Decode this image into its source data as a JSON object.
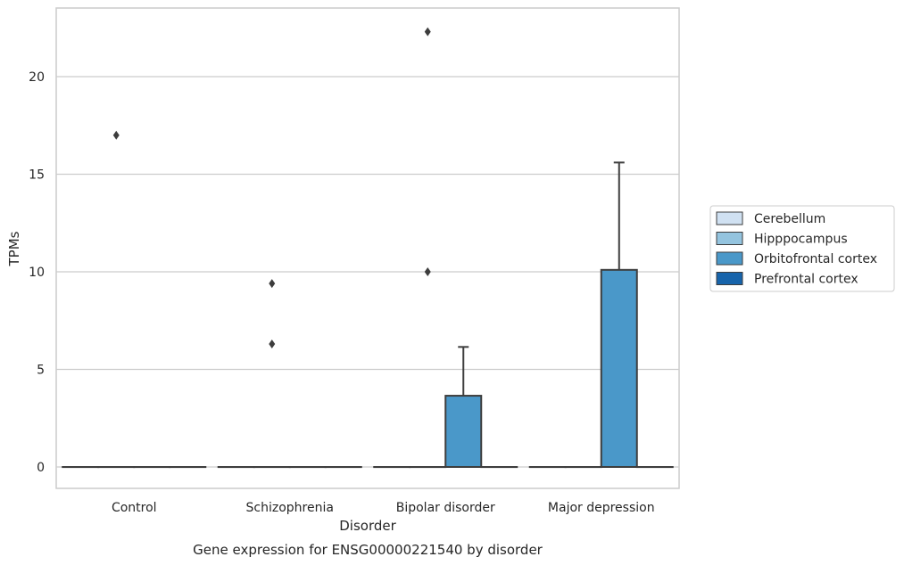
{
  "chart_data": {
    "type": "box",
    "title": "Gene expression for ENSG00000221540 by disorder",
    "xlabel": "Disorder",
    "ylabel": "TPMs",
    "ylim": [
      -1.1,
      23.6
    ],
    "yticks": [
      0,
      5,
      10,
      15,
      20
    ],
    "grid": true,
    "legend_position": "right",
    "categories": [
      "Control",
      "Schizophrenia",
      "Bipolar disorder",
      "Major depression"
    ],
    "series": [
      {
        "name": "Cerebellum",
        "color": "#d0e1f2"
      },
      {
        "name": "Hipppocampus",
        "color": "#94c4df"
      },
      {
        "name": "Orbitofrontal cortex",
        "color": "#4a98c9"
      },
      {
        "name": "Prefrontal cortex",
        "color": "#1764ab"
      }
    ],
    "boxes": [
      {
        "category": 0,
        "series": 0,
        "q1": 0,
        "median": 0,
        "q3": 0,
        "whisker_low": 0,
        "whisker_high": 0,
        "outliers": []
      },
      {
        "category": 0,
        "series": 1,
        "q1": 0,
        "median": 0,
        "q3": 0,
        "whisker_low": 0,
        "whisker_high": 0,
        "outliers": [
          17.0
        ]
      },
      {
        "category": 0,
        "series": 2,
        "q1": 0,
        "median": 0,
        "q3": 0,
        "whisker_low": 0,
        "whisker_high": 0,
        "outliers": []
      },
      {
        "category": 0,
        "series": 3,
        "q1": 0,
        "median": 0,
        "q3": 0,
        "whisker_low": 0,
        "whisker_high": 0,
        "outliers": []
      },
      {
        "category": 1,
        "series": 0,
        "q1": 0,
        "median": 0,
        "q3": 0,
        "whisker_low": 0,
        "whisker_high": 0,
        "outliers": []
      },
      {
        "category": 1,
        "series": 1,
        "q1": 0,
        "median": 0,
        "q3": 0,
        "whisker_low": 0,
        "whisker_high": 0,
        "outliers": [
          9.4,
          6.3
        ]
      },
      {
        "category": 1,
        "series": 2,
        "q1": 0,
        "median": 0,
        "q3": 0,
        "whisker_low": 0,
        "whisker_high": 0,
        "outliers": []
      },
      {
        "category": 1,
        "series": 3,
        "q1": 0,
        "median": 0,
        "q3": 0,
        "whisker_low": 0,
        "whisker_high": 0,
        "outliers": []
      },
      {
        "category": 2,
        "series": 0,
        "q1": 0,
        "median": 0,
        "q3": 0,
        "whisker_low": 0,
        "whisker_high": 0,
        "outliers": []
      },
      {
        "category": 2,
        "series": 1,
        "q1": 0,
        "median": 0,
        "q3": 0,
        "whisker_low": 0,
        "whisker_high": 0,
        "outliers": [
          22.3,
          10.0
        ]
      },
      {
        "category": 2,
        "series": 2,
        "q1": 0,
        "median": 0,
        "q3": 3.65,
        "whisker_low": 0,
        "whisker_high": 6.15,
        "outliers": []
      },
      {
        "category": 2,
        "series": 3,
        "q1": 0,
        "median": 0,
        "q3": 0,
        "whisker_low": 0,
        "whisker_high": 0,
        "outliers": []
      },
      {
        "category": 3,
        "series": 0,
        "q1": 0,
        "median": 0,
        "q3": 0,
        "whisker_low": 0,
        "whisker_high": 0,
        "outliers": []
      },
      {
        "category": 3,
        "series": 1,
        "q1": 0,
        "median": 0,
        "q3": 0,
        "whisker_low": 0,
        "whisker_high": 0,
        "outliers": []
      },
      {
        "category": 3,
        "series": 2,
        "q1": 0,
        "median": 0,
        "q3": 10.1,
        "whisker_low": 0,
        "whisker_high": 15.6,
        "outliers": []
      },
      {
        "category": 3,
        "series": 3,
        "q1": 0,
        "median": 0,
        "q3": 0,
        "whisker_low": 0,
        "whisker_high": 0,
        "outliers": []
      }
    ]
  }
}
